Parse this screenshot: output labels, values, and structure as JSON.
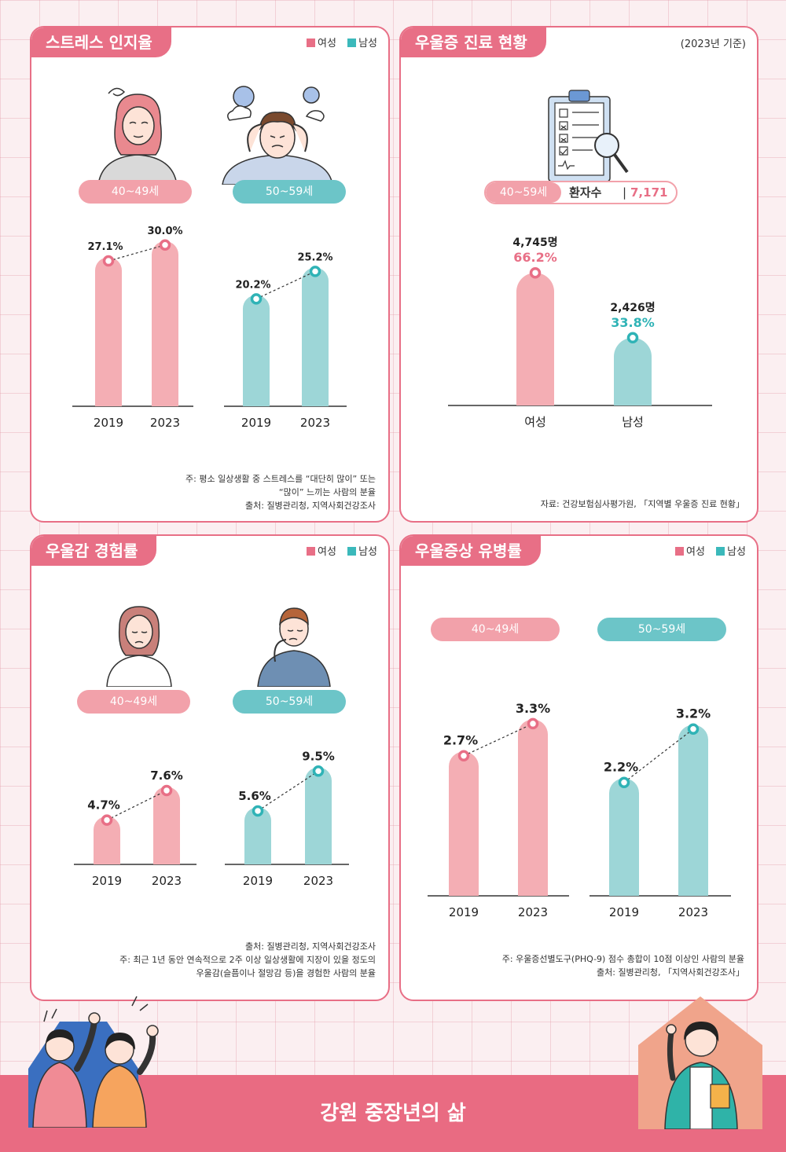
{
  "legend": {
    "female": "여성",
    "male": "남성"
  },
  "footer": {
    "title": "강원 중장년의 삶"
  },
  "stress": {
    "title": "스트레스 인지율",
    "groups": [
      "40~49세",
      "50~59세"
    ],
    "note1": "주: 평소 일상생활 중 스트레스를 “대단히 많이” 또는",
    "note2": "“많이” 느끼는 사람의 분율",
    "source": "출처: 질병관리청, 지역사회건강조사"
  },
  "clinic": {
    "title": "우울증 진료 현황",
    "basis": "(2023년 기준)",
    "age": "40~59세",
    "patients_label": "환자수",
    "patients_sep": "|",
    "patients_value": "7,171명",
    "source": "자료: 건강보험심사평가원, 「지역별 우울증 진료 현황」"
  },
  "depress": {
    "title": "우울감 경험률",
    "groups": [
      "40~49세",
      "50~59세"
    ],
    "source": "출처: 질병관리청, 지역사회건강조사",
    "note1": "주: 최근 1년 동안 연속적으로 2주 이상 일상생활에 지장이 있을 정도의",
    "note2": "우울감(슬픔이나 절망감 등)을 경험한 사람의 분율"
  },
  "symptom": {
    "title": "우울증상 유병률",
    "groups": [
      "40~49세",
      "50~59세"
    ],
    "note1": "주: 우울증선별도구(PHQ-9) 점수 총합이 10점 이상인 사람의 분율",
    "source": "출처: 질병관리청, 「지역사회건강조사」"
  },
  "colors": {
    "female_bar": "#f4aeb4",
    "male_bar": "#9dd6d7",
    "female_dot": "#e86f86",
    "male_dot": "#2fb3b6"
  },
  "chart_data": [
    {
      "id": "stress",
      "type": "bar",
      "title": "스트레스 인지율",
      "unit": "%",
      "categories": [
        "2019",
        "2023"
      ],
      "series": [
        {
          "name": "여성",
          "group": "40~49세",
          "values": [
            27.1,
            30.0
          ],
          "labels": [
            "27.1%",
            "30.0%"
          ]
        },
        {
          "name": "남성",
          "group": "50~59세",
          "values": [
            20.2,
            25.2
          ],
          "labels": [
            "20.2%",
            "25.2%"
          ]
        }
      ]
    },
    {
      "id": "clinic",
      "type": "bar",
      "title": "우울증 진료 현황",
      "categories": [
        "여성",
        "남성"
      ],
      "values": [
        66.2,
        33.8
      ],
      "counts": [
        "4,745명",
        "2,426명"
      ],
      "labels": [
        "66.2%",
        "33.8%"
      ]
    },
    {
      "id": "depress",
      "type": "bar",
      "title": "우울감 경험률",
      "unit": "%",
      "categories": [
        "2019",
        "2023"
      ],
      "series": [
        {
          "name": "여성",
          "group": "40~49세",
          "values": [
            4.7,
            7.6
          ],
          "labels": [
            "4.7%",
            "7.6%"
          ]
        },
        {
          "name": "남성",
          "group": "50~59세",
          "values": [
            5.6,
            9.5
          ],
          "labels": [
            "5.6%",
            "9.5%"
          ]
        }
      ]
    },
    {
      "id": "symptom",
      "type": "bar",
      "title": "우울증상 유병률",
      "unit": "%",
      "categories": [
        "2019",
        "2023"
      ],
      "series": [
        {
          "name": "여성",
          "group": "40~49세",
          "values": [
            2.7,
            3.3
          ],
          "labels": [
            "2.7%",
            "3.3%"
          ]
        },
        {
          "name": "남성",
          "group": "50~59세",
          "values": [
            2.2,
            3.2
          ],
          "labels": [
            "2.2%",
            "3.2%"
          ]
        }
      ]
    }
  ]
}
